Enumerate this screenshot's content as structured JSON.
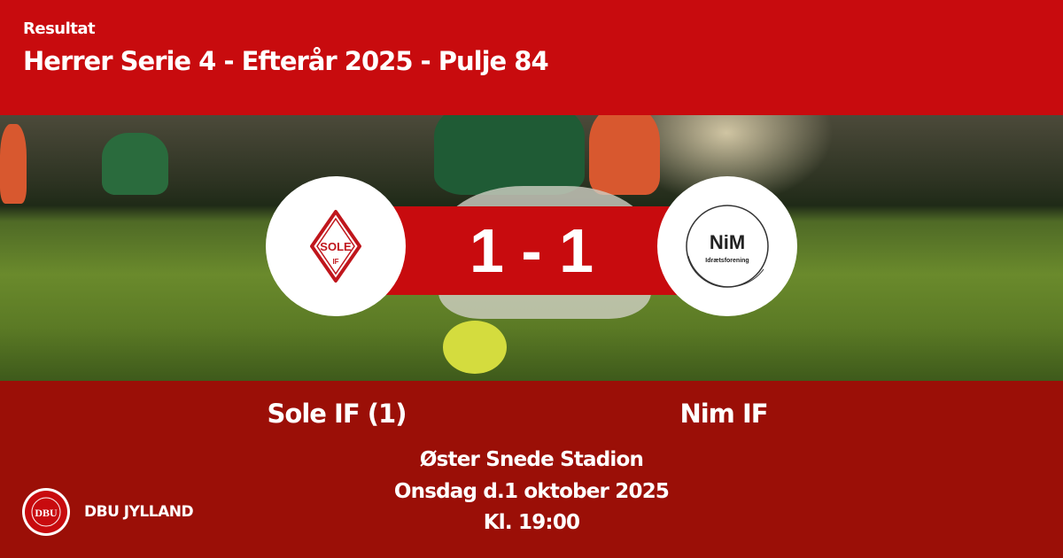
{
  "header": {
    "kicker": "Resultat",
    "title": "Herrer Serie 4 - Efterår 2025 - Pulje 84"
  },
  "match": {
    "score": "1 - 1",
    "home_team": "Sole IF (1)",
    "away_team": "Nim IF",
    "home_logo_text": "SOLE IF",
    "away_logo_text": "NIM Idrætsforening"
  },
  "details": {
    "venue": "Øster Snede Stadion",
    "date": "Onsdag d.1 oktober 2025",
    "time": "Kl. 19:00"
  },
  "footer": {
    "brand": "DBU JYLLAND",
    "logo_text": "DANSK BOLDSPIL UNION 1889 DBU"
  },
  "colors": {
    "header": "#c80b0e",
    "footer": "#9b0f07",
    "score_band": "#c80b0e"
  }
}
